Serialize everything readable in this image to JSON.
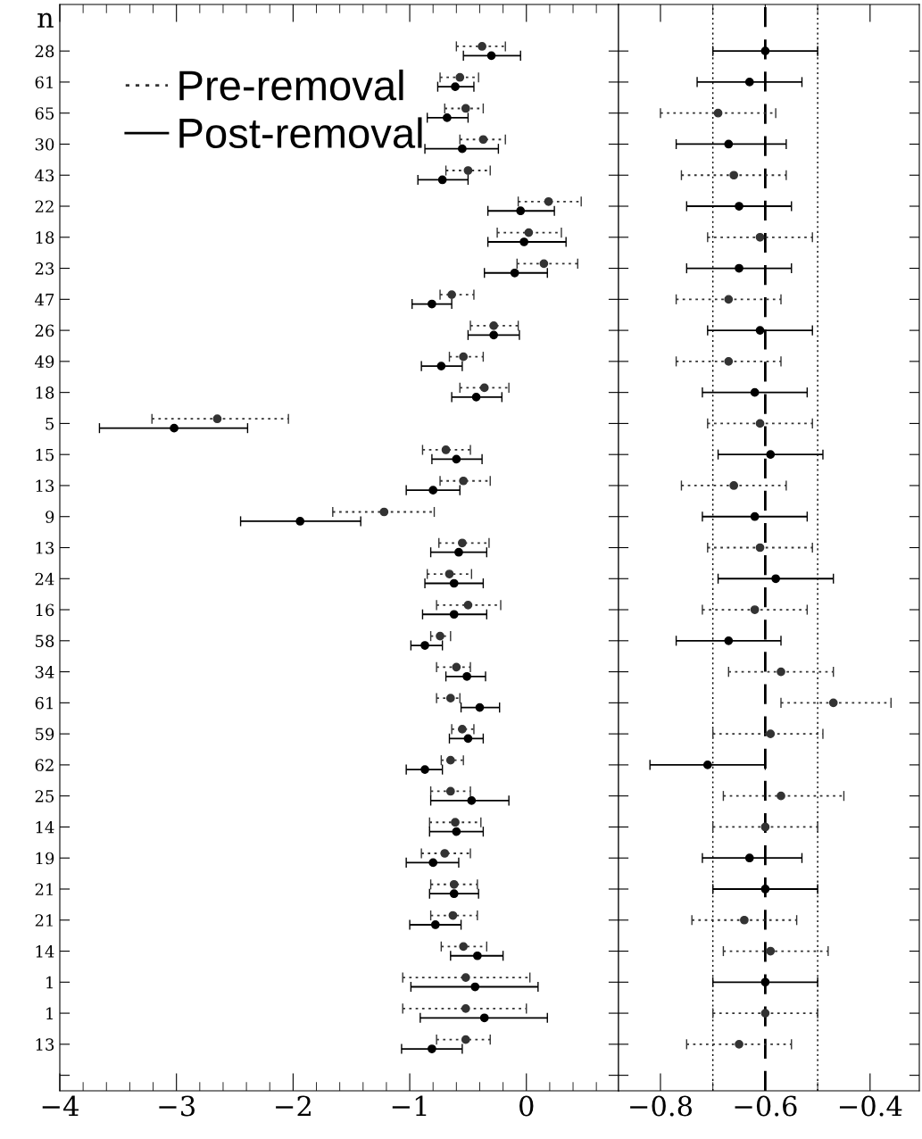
{
  "chart_data": [
    {
      "type": "scatter",
      "orientation": "horizontal",
      "ylabel": "n",
      "categories": [
        "28",
        "61",
        "65",
        "30",
        "43",
        "22",
        "18",
        "23",
        "47",
        "26",
        "49",
        "18",
        "5",
        "15",
        "13",
        "9",
        "13",
        "24",
        "16",
        "58",
        "34",
        "61",
        "59",
        "62",
        "25",
        "14",
        "19",
        "21",
        "21",
        "14",
        "1",
        "1",
        "13",
        null
      ],
      "xlim": [
        -4,
        0.79
      ],
      "xticks": [
        {
          "value": -4,
          "label": "−4"
        },
        {
          "value": -3,
          "label": "−3"
        },
        {
          "value": -2,
          "label": "−2"
        },
        {
          "value": -1,
          "label": "−1"
        },
        0
      ],
      "grid": false,
      "legend": "top left",
      "marker": "circle",
      "series": [
        {
          "name": "Pre-removal",
          "color": "#333333",
          "line_style": "dotted",
          "values": [
            -0.38,
            -0.57,
            -0.52,
            -0.37,
            -0.5,
            0.19,
            0.02,
            0.15,
            -0.64,
            -0.28,
            -0.54,
            -0.36,
            -2.65,
            -0.69,
            -0.54,
            -1.22,
            -0.55,
            -0.66,
            -0.5,
            -0.74,
            -0.6,
            -0.65,
            -0.55,
            -0.65,
            -0.65,
            -0.61,
            -0.7,
            -0.62,
            -0.63,
            -0.54,
            -0.52,
            -0.52,
            -0.52,
            null
          ],
          "errors": [
            [
              -0.6,
              -0.18
            ],
            [
              -0.74,
              -0.41
            ],
            [
              -0.7,
              -0.37
            ],
            [
              -0.57,
              -0.18
            ],
            [
              -0.69,
              -0.31
            ],
            [
              -0.07,
              0.47
            ],
            [
              -0.25,
              0.3
            ],
            [
              -0.08,
              0.44
            ],
            [
              -0.74,
              -0.45
            ],
            [
              -0.48,
              -0.07
            ],
            [
              -0.66,
              -0.37
            ],
            [
              -0.57,
              -0.15
            ],
            [
              -3.21,
              -2.04
            ],
            [
              -0.89,
              -0.48
            ],
            [
              -0.74,
              -0.31
            ],
            [
              -1.66,
              -0.79
            ],
            [
              -0.75,
              -0.32
            ],
            [
              -0.85,
              -0.47
            ],
            [
              -0.77,
              -0.22
            ],
            [
              -0.82,
              -0.65
            ],
            [
              -0.77,
              -0.48
            ],
            [
              -0.77,
              -0.57
            ],
            [
              -0.64,
              -0.45
            ],
            [
              -0.73,
              -0.54
            ],
            [
              -0.82,
              -0.48
            ],
            [
              -0.83,
              -0.39
            ],
            [
              -0.9,
              -0.48
            ],
            [
              -0.82,
              -0.42
            ],
            [
              -0.82,
              -0.42
            ],
            [
              -0.73,
              -0.34
            ],
            [
              -1.06,
              0.03
            ],
            [
              -1.06,
              0.0
            ],
            [
              -0.77,
              -0.31
            ],
            null
          ]
        },
        {
          "name": "Post-removal",
          "color": "#000000",
          "line_style": "solid",
          "values": [
            -0.3,
            -0.61,
            -0.68,
            -0.55,
            -0.72,
            -0.05,
            -0.02,
            -0.1,
            -0.81,
            -0.28,
            -0.73,
            -0.43,
            -3.02,
            -0.6,
            -0.8,
            -1.94,
            -0.58,
            -0.62,
            -0.62,
            -0.87,
            -0.51,
            -0.4,
            -0.5,
            -0.87,
            -0.47,
            -0.6,
            -0.8,
            -0.62,
            -0.78,
            -0.42,
            -0.44,
            -0.36,
            -0.81,
            null
          ],
          "errors": [
            [
              -0.54,
              -0.05
            ],
            [
              -0.76,
              -0.45
            ],
            [
              -0.85,
              -0.5
            ],
            [
              -0.87,
              -0.24
            ],
            [
              -0.93,
              -0.5
            ],
            [
              -0.33,
              0.24
            ],
            [
              -0.33,
              0.34
            ],
            [
              -0.36,
              0.18
            ],
            [
              -0.98,
              -0.64
            ],
            [
              -0.5,
              -0.06
            ],
            [
              -0.9,
              -0.55
            ],
            [
              -0.64,
              -0.21
            ],
            [
              -3.66,
              -2.39
            ],
            [
              -0.81,
              -0.38
            ],
            [
              -1.03,
              -0.57
            ],
            [
              -2.45,
              -1.42
            ],
            [
              -0.82,
              -0.34
            ],
            [
              -0.87,
              -0.37
            ],
            [
              -0.89,
              -0.34
            ],
            [
              -0.99,
              -0.72
            ],
            [
              -0.69,
              -0.35
            ],
            [
              -0.56,
              -0.23
            ],
            [
              -0.66,
              -0.37
            ],
            [
              -1.03,
              -0.72
            ],
            [
              -0.82,
              -0.15
            ],
            [
              -0.83,
              -0.37
            ],
            [
              -1.03,
              -0.58
            ],
            [
              -0.83,
              -0.41
            ],
            [
              -1.0,
              -0.56
            ],
            [
              -0.65,
              -0.2
            ],
            [
              -0.99,
              0.1
            ],
            [
              -0.91,
              0.18
            ],
            [
              -1.07,
              -0.55
            ],
            null
          ]
        }
      ]
    },
    {
      "type": "scatter",
      "orientation": "horizontal",
      "categories": [
        "28",
        "61",
        "65",
        "30",
        "43",
        "22",
        "18",
        "23",
        "47",
        "26",
        "49",
        "18",
        "5",
        "15",
        "13",
        "9",
        "13",
        "24",
        "16",
        "58",
        "34",
        "61",
        "59",
        "62",
        "25",
        "14",
        "19",
        "21",
        "21",
        "14",
        "1",
        "1",
        "13",
        null
      ],
      "tick_labels": "x",
      "xlim": [
        -0.88,
        -0.306
      ],
      "xticks": [
        {
          "value": -0.8,
          "label": "−0.8"
        },
        {
          "value": -0.6,
          "label": "−0.6"
        },
        {
          "value": -0.4,
          "label": "−0.4"
        }
      ],
      "grid": false,
      "marker": "circle",
      "ref_lines": [
        {
          "axis": "x",
          "value": -0.7,
          "color": "#000000",
          "line_style": "dotted"
        },
        {
          "axis": "x",
          "value": -0.6,
          "color": "#000000",
          "line_style": "dashed"
        },
        {
          "axis": "x",
          "value": -0.5,
          "color": "#000000",
          "line_style": "dotted"
        }
      ],
      "series": [
        {
          "color": "#333333",
          "line_style": "dotted",
          "values": [
            null,
            null,
            -0.69,
            null,
            -0.66,
            null,
            -0.61,
            null,
            -0.67,
            null,
            -0.67,
            null,
            -0.61,
            null,
            -0.66,
            null,
            -0.61,
            null,
            -0.62,
            null,
            -0.57,
            -0.47,
            -0.59,
            null,
            -0.57,
            -0.6,
            null,
            null,
            -0.64,
            -0.59,
            null,
            -0.6,
            -0.65,
            null
          ],
          "errors": [
            null,
            null,
            [
              -0.8,
              -0.58
            ],
            null,
            [
              -0.76,
              -0.56
            ],
            null,
            [
              -0.71,
              -0.51
            ],
            null,
            [
              -0.77,
              -0.57
            ],
            null,
            [
              -0.77,
              -0.57
            ],
            null,
            [
              -0.71,
              -0.51
            ],
            null,
            [
              -0.76,
              -0.56
            ],
            null,
            [
              -0.71,
              -0.51
            ],
            null,
            [
              -0.72,
              -0.52
            ],
            null,
            [
              -0.67,
              -0.47
            ],
            [
              -0.57,
              -0.36
            ],
            [
              -0.7,
              -0.49
            ],
            null,
            [
              -0.68,
              -0.45
            ],
            [
              -0.7,
              -0.5
            ],
            null,
            null,
            [
              -0.74,
              -0.54
            ],
            [
              -0.68,
              -0.48
            ],
            null,
            [
              -0.7,
              -0.5
            ],
            [
              -0.75,
              -0.55
            ],
            null
          ]
        },
        {
          "color": "#000000",
          "line_style": "solid",
          "values": [
            -0.6,
            -0.63,
            null,
            -0.67,
            null,
            -0.65,
            null,
            -0.65,
            null,
            -0.61,
            null,
            -0.62,
            null,
            -0.59,
            null,
            -0.62,
            null,
            -0.58,
            null,
            -0.67,
            null,
            null,
            null,
            -0.71,
            null,
            null,
            -0.63,
            -0.6,
            null,
            null,
            -0.6,
            null,
            null,
            null
          ],
          "errors": [
            [
              -0.7,
              -0.5
            ],
            [
              -0.73,
              -0.53
            ],
            null,
            [
              -0.77,
              -0.56
            ],
            null,
            [
              -0.75,
              -0.55
            ],
            null,
            [
              -0.75,
              -0.55
            ],
            null,
            [
              -0.71,
              -0.51
            ],
            null,
            [
              -0.72,
              -0.52
            ],
            null,
            [
              -0.69,
              -0.49
            ],
            null,
            [
              -0.72,
              -0.52
            ],
            null,
            [
              -0.69,
              -0.47
            ],
            null,
            [
              -0.77,
              -0.57
            ],
            null,
            null,
            null,
            [
              -0.82,
              -0.6
            ],
            null,
            null,
            [
              -0.72,
              -0.53
            ],
            [
              -0.7,
              -0.5
            ],
            null,
            null,
            [
              -0.7,
              -0.5
            ],
            null,
            null,
            null
          ]
        }
      ]
    }
  ]
}
